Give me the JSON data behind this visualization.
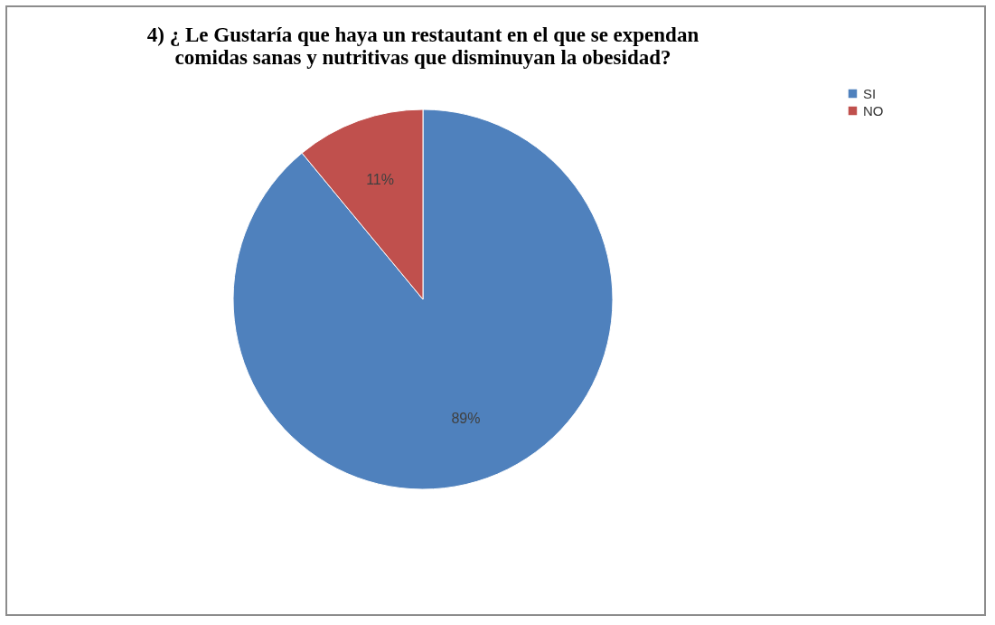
{
  "chart_data": {
    "type": "pie",
    "title": "4) ¿ Le Gustaría que haya un restautant en el que se expendan comidas sanas y nutritivas que disminuyan la obesidad?",
    "categories": [
      "SI",
      "NO"
    ],
    "values": [
      89,
      11
    ],
    "colors": [
      "#4f81bd",
      "#c0504d"
    ],
    "value_labels": [
      "89%",
      "11%"
    ],
    "legend": "right"
  }
}
